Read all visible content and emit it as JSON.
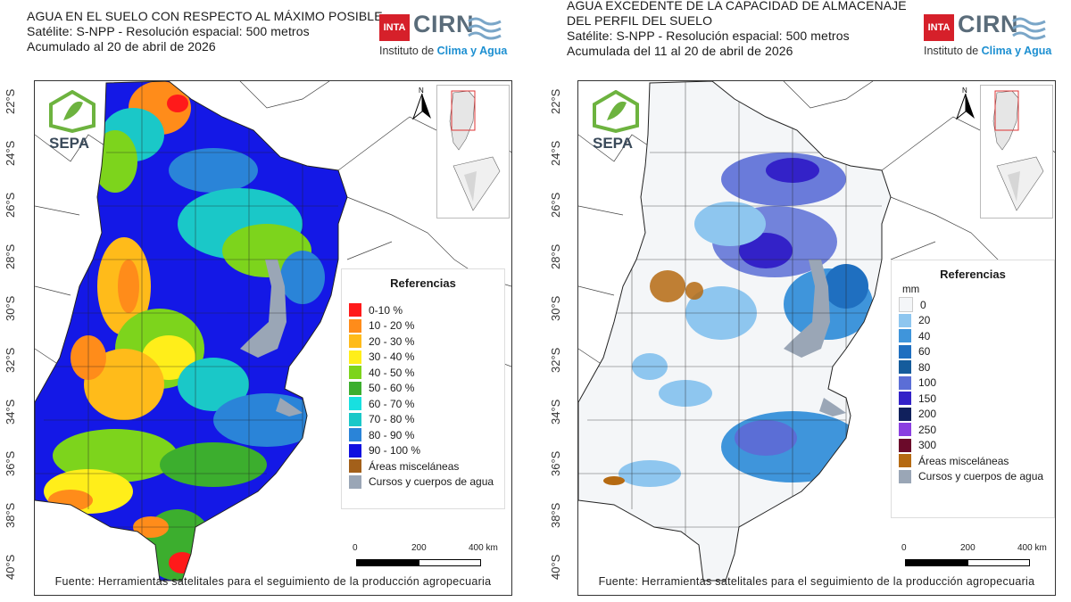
{
  "left": {
    "title_lines": [
      "AGUA EN EL SUELO CON RESPECTO AL MÁXIMO POSIBLE",
      "Satélite: S-NPP - Resolución espacial: 500 metros",
      "Acumulado al 20 de abril de 2026"
    ],
    "logo": {
      "inta": "INTA",
      "cirn": "CIRN",
      "institute_prefix": "Instituto de ",
      "institute_highlight": "Clima y Agua"
    },
    "sepa_logo": "SEPA",
    "north": "N",
    "legend": {
      "title": "Referencias",
      "unit": "",
      "items": [
        {
          "label": "0-10 %",
          "color": "#ff1a1a"
        },
        {
          "label": "10 - 20 %",
          "color": "#ff8c1a"
        },
        {
          "label": "20 - 30 %",
          "color": "#ffbb1a"
        },
        {
          "label": "30 - 40 %",
          "color": "#ffee1a"
        },
        {
          "label": "40 - 50 %",
          "color": "#7dd41c"
        },
        {
          "label": "50 - 60 %",
          "color": "#3cae2e"
        },
        {
          "label": "60 - 70 %",
          "color": "#18e0e0"
        },
        {
          "label": "70 - 80 %",
          "color": "#1ac8c8"
        },
        {
          "label": "80 - 90 %",
          "color": "#2a84d8"
        },
        {
          "label": "90 - 100 %",
          "color": "#1010e0"
        },
        {
          "label": "Áreas misceláneas",
          "color": "#a3601a"
        },
        {
          "label": "Cursos y cuerpos de agua",
          "color": "#9aa6b6"
        }
      ]
    },
    "scale": {
      "labels": [
        "0",
        "200",
        "400 km"
      ]
    },
    "lat_labels": [
      "22°S",
      "24°S",
      "26°S",
      "28°S",
      "30°S",
      "32°S",
      "34°S",
      "36°S",
      "38°S",
      "40°S"
    ],
    "source": "Fuente: Herramientas satelitales para el seguimiento de la producción agropecuaria"
  },
  "right": {
    "title_lines": [
      "AGUA EXCEDENTE DE LA CAPACIDAD DE ALMACENAJE",
      "DEL PERFIL DEL SUELO",
      "Satélite: S-NPP - Resolución espacial: 500 metros",
      "Acumulada del 11 al 20 de abril de 2026"
    ],
    "logo": {
      "inta": "INTA",
      "cirn": "CIRN",
      "institute_prefix": "Instituto de ",
      "institute_highlight": "Clima y Agua"
    },
    "sepa_logo": "SEPA",
    "north": "N",
    "legend": {
      "title": "Referencias",
      "unit": "mm",
      "items": [
        {
          "label": "0",
          "color": "#f4f6f8"
        },
        {
          "label": "20",
          "color": "#8ec6ef"
        },
        {
          "label": "40",
          "color": "#3f95db"
        },
        {
          "label": "60",
          "color": "#1f6fc0"
        },
        {
          "label": "80",
          "color": "#155c9c"
        },
        {
          "label": "100",
          "color": "#5b6ed6"
        },
        {
          "label": "150",
          "color": "#3322c8"
        },
        {
          "label": "200",
          "color": "#10205c"
        },
        {
          "label": "250",
          "color": "#8a3fe0"
        },
        {
          "label": "300",
          "color": "#6b0a2a"
        },
        {
          "label": "Áreas misceláneas",
          "color": "#b56a12"
        },
        {
          "label": "Cursos y cuerpos de agua",
          "color": "#9aa6b6"
        }
      ]
    },
    "scale": {
      "labels": [
        "0",
        "200",
        "400 km"
      ]
    },
    "lat_labels": [
      "22°S",
      "24°S",
      "26°S",
      "28°S",
      "30°S",
      "32°S",
      "34°S",
      "36°S",
      "38°S",
      "40°S"
    ],
    "source": "Fuente: Herramientas satelitales para el seguimiento de la producción agropecuaria"
  }
}
